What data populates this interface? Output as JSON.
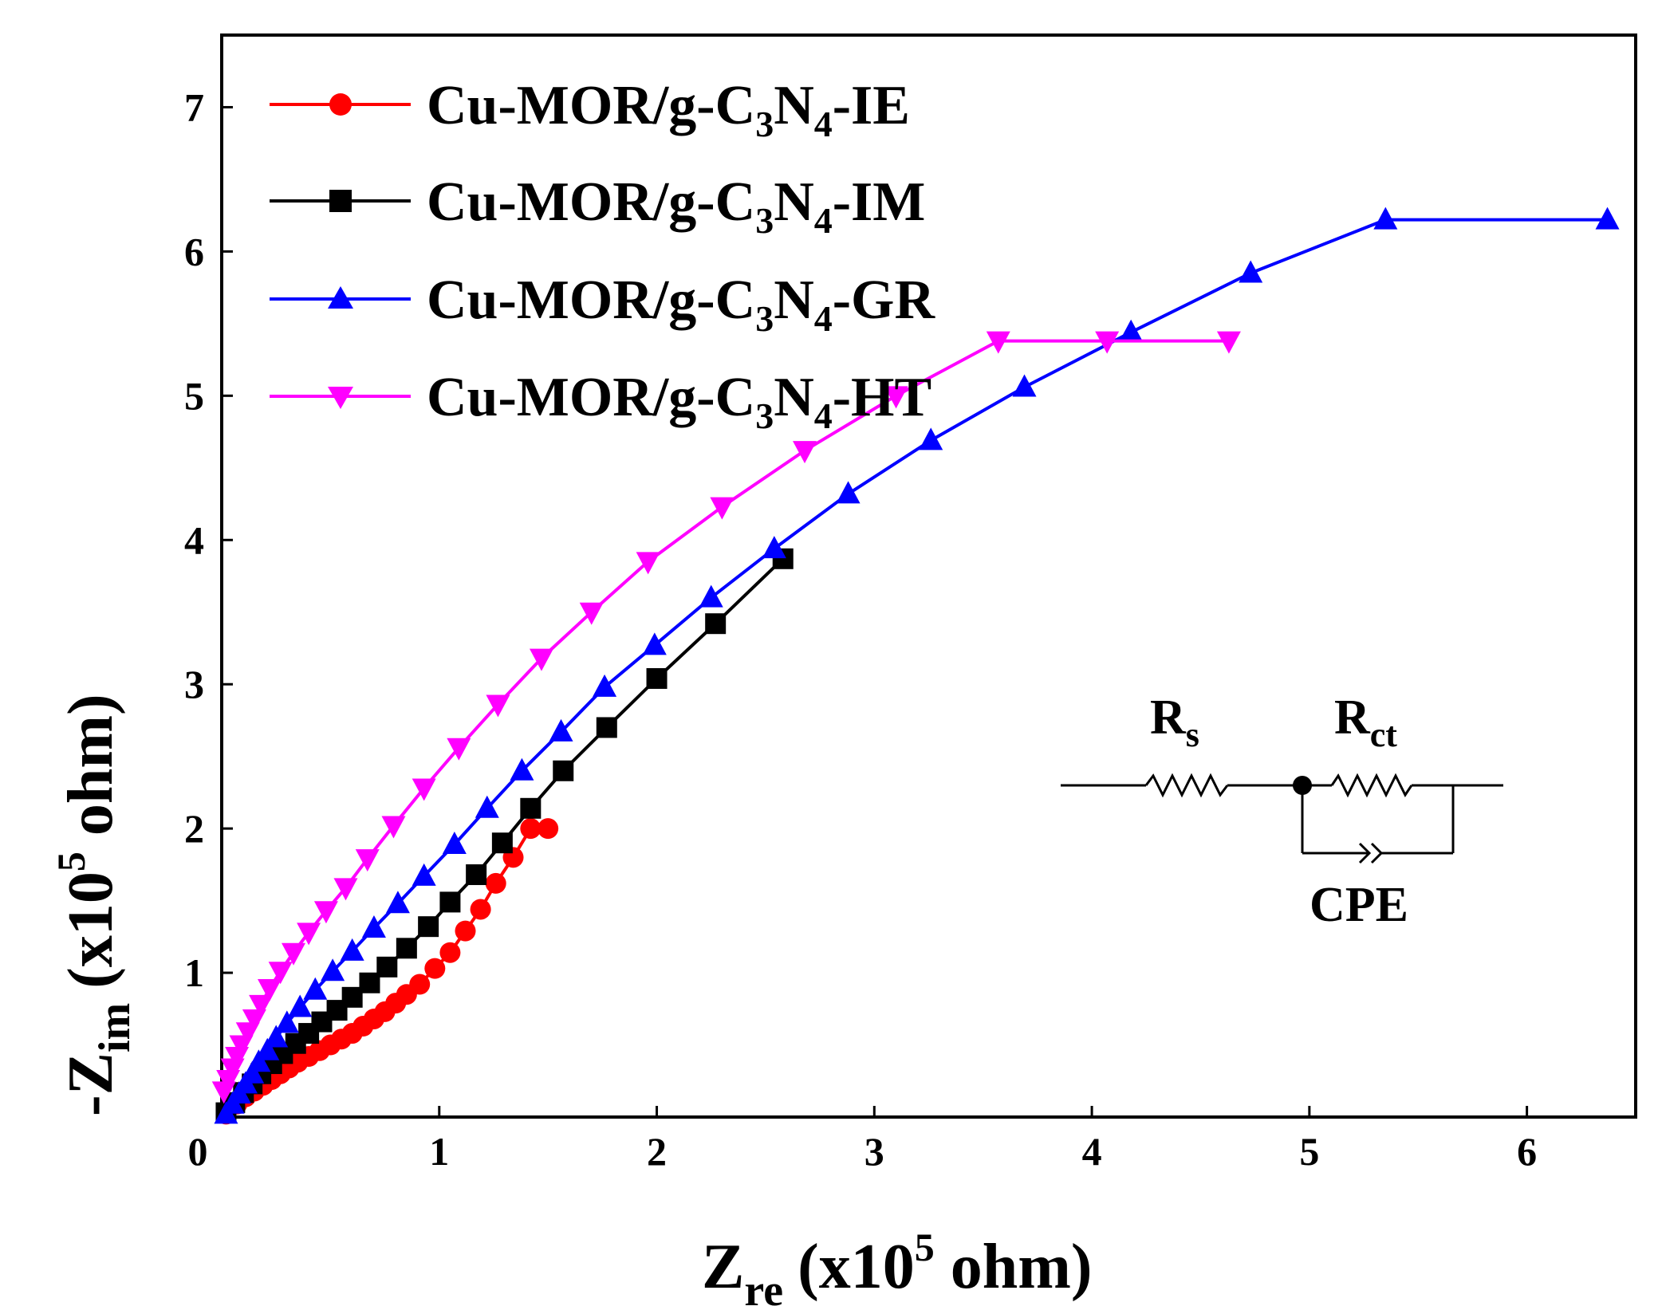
{
  "chart_data": {
    "type": "line",
    "xlabel": {
      "main": "Z",
      "sub": "re",
      "pre": "(x10",
      "sup": "5",
      "post": " ohm)"
    },
    "ylabel": {
      "main": "-Z",
      "sub": "im",
      "pre": "(x10",
      "sup": "5",
      "post": " ohm)"
    },
    "xlim": [
      0,
      6.5
    ],
    "ylim": [
      0,
      7.5
    ],
    "xticks": [
      "0",
      "1",
      "2",
      "3",
      "4",
      "5",
      "6"
    ],
    "yticks": [
      "1",
      "2",
      "3",
      "4",
      "5",
      "6",
      "7"
    ],
    "legend_position": "top-left",
    "series": [
      {
        "name": "Cu-MOR/g-C3N4-IE",
        "label": {
          "pre": "Cu-MOR/g-C",
          "sub1": "3",
          "mid": "N",
          "sub2": "4",
          "post": "-IE"
        },
        "color": "#ff0000",
        "marker": "circle",
        "x": [
          0.02,
          0.07,
          0.11,
          0.15,
          0.19,
          0.23,
          0.27,
          0.31,
          0.35,
          0.4,
          0.45,
          0.5,
          0.55,
          0.6,
          0.65,
          0.7,
          0.75,
          0.8,
          0.85,
          0.91,
          0.98,
          1.05,
          1.12,
          1.19,
          1.26,
          1.34,
          1.42,
          1.5
        ],
        "y": [
          0.02,
          0.09,
          0.14,
          0.18,
          0.22,
          0.26,
          0.3,
          0.34,
          0.38,
          0.42,
          0.46,
          0.5,
          0.54,
          0.58,
          0.63,
          0.68,
          0.73,
          0.79,
          0.85,
          0.92,
          1.03,
          1.14,
          1.29,
          1.44,
          1.62,
          1.8,
          2.0,
          2.0
        ]
      },
      {
        "name": "Cu-MOR/g-C3N4-IM",
        "label": {
          "pre": "Cu-MOR/g-C",
          "sub1": "3",
          "mid": "N",
          "sub2": "4",
          "post": "-IM"
        },
        "color": "#000000",
        "marker": "square",
        "x": [
          0.02,
          0.06,
          0.1,
          0.14,
          0.18,
          0.23,
          0.28,
          0.34,
          0.4,
          0.46,
          0.53,
          0.6,
          0.68,
          0.76,
          0.85,
          0.95,
          1.05,
          1.17,
          1.29,
          1.42,
          1.57,
          1.77,
          2.0,
          2.27,
          2.58
        ],
        "y": [
          0.03,
          0.1,
          0.17,
          0.23,
          0.3,
          0.37,
          0.44,
          0.51,
          0.58,
          0.66,
          0.74,
          0.83,
          0.93,
          1.04,
          1.17,
          1.32,
          1.49,
          1.68,
          1.9,
          2.14,
          2.4,
          2.7,
          3.04,
          3.42,
          3.87
        ]
      },
      {
        "name": "Cu-MOR/g-C3N4-GR",
        "label": {
          "pre": "Cu-MOR/g-C",
          "sub1": "3",
          "mid": "N",
          "sub2": "4",
          "post": "-GR"
        },
        "color": "#0000ff",
        "marker": "triangle-up",
        "x": [
          0.02,
          0.05,
          0.08,
          0.11,
          0.14,
          0.17,
          0.21,
          0.25,
          0.3,
          0.36,
          0.43,
          0.51,
          0.6,
          0.7,
          0.81,
          0.93,
          1.07,
          1.22,
          1.38,
          1.56,
          1.76,
          1.99,
          2.25,
          2.54,
          2.88,
          3.26,
          3.69,
          4.18,
          4.73,
          5.35,
          6.37
        ],
        "y": [
          0.02,
          0.09,
          0.16,
          0.23,
          0.3,
          0.38,
          0.46,
          0.55,
          0.65,
          0.76,
          0.88,
          1.01,
          1.15,
          1.31,
          1.48,
          1.67,
          1.89,
          2.14,
          2.4,
          2.67,
          2.98,
          3.27,
          3.6,
          3.94,
          4.32,
          4.69,
          5.06,
          5.44,
          5.85,
          6.22,
          6.22
        ]
      },
      {
        "name": "Cu-MOR/g-C3N4-HT",
        "label": {
          "pre": "Cu-MOR/g-C",
          "sub1": "3",
          "mid": "N",
          "sub2": "4",
          "post": "-HT"
        },
        "color": "#ff00ff",
        "marker": "triangle-down",
        "x": [
          0.01,
          0.03,
          0.05,
          0.07,
          0.09,
          0.12,
          0.15,
          0.18,
          0.22,
          0.27,
          0.33,
          0.4,
          0.48,
          0.57,
          0.67,
          0.79,
          0.93,
          1.09,
          1.27,
          1.47,
          1.7,
          1.96,
          2.3,
          2.68,
          3.1,
          3.57,
          4.07,
          4.63
        ],
        "y": [
          0.18,
          0.26,
          0.34,
          0.42,
          0.5,
          0.59,
          0.68,
          0.78,
          0.89,
          1.01,
          1.14,
          1.28,
          1.43,
          1.59,
          1.79,
          2.02,
          2.28,
          2.56,
          2.86,
          3.18,
          3.5,
          3.85,
          4.23,
          4.62,
          5.0,
          5.38,
          5.38,
          5.38
        ]
      }
    ],
    "inset": {
      "rs": {
        "main": "R",
        "sub": "s"
      },
      "rct": {
        "main": "R",
        "sub": "ct"
      },
      "cpe": "CPE"
    }
  }
}
